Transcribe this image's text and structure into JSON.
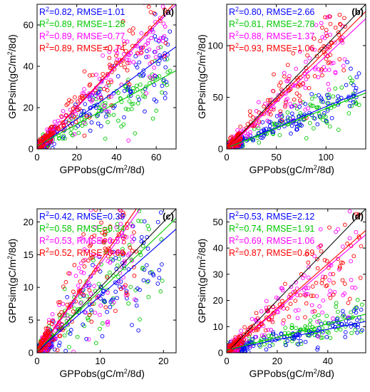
{
  "chart_data": [
    {
      "panel": "(a)",
      "type": "scatter",
      "xlabel": "GPPobs(gC/m²/8d)",
      "ylabel": "GPPsim(gC/m²/8d)",
      "xlim": [
        0,
        70
      ],
      "ylim": [
        0,
        70
      ],
      "xticks": [
        "0",
        "20",
        "40",
        "60"
      ],
      "xtick_values": [
        0,
        20,
        40,
        60
      ],
      "yticks": [
        "0",
        "20",
        "40",
        "60"
      ],
      "ytick_values": [
        0,
        20,
        40,
        60
      ],
      "grid": false,
      "legend": "top-left",
      "series": [
        {
          "color": "#0000ff",
          "r2": "0.82",
          "rmse": "1.01",
          "slope": 0.7,
          "intercept": 0.5,
          "xmax": 68,
          "spread": 0.25
        },
        {
          "color": "#00c800",
          "r2": "0.89",
          "rmse": "1.28",
          "slope": 0.52,
          "intercept": 1.5,
          "xmax": 68,
          "spread": 0.25
        },
        {
          "color": "#ff00ff",
          "r2": "0.89",
          "rmse": "0.77",
          "slope": 1.0,
          "intercept": 0.0,
          "xmax": 65,
          "spread": 0.22
        },
        {
          "color": "#ff0000",
          "r2": "0.89",
          "rmse": "0.74",
          "slope": 1.02,
          "intercept": 0.0,
          "xmax": 65,
          "spread": 0.22
        }
      ],
      "stats_text": [
        {
          "color": "#0000ff",
          "text": "R²=0.82, RMSE=1.01"
        },
        {
          "color": "#00c800",
          "text": "R²=0.89, RMSE=1.28"
        },
        {
          "color": "#ff00ff",
          "text": "R²=0.89, RMSE=0.77"
        },
        {
          "color": "#ff0000",
          "text": "R²=0.89, RMSE=0.74"
        }
      ]
    },
    {
      "panel": "(b)",
      "type": "scatter",
      "xlabel": "GPPobs(gC/m²/8d)",
      "ylabel": "GPPsim(gC/m²/8d)",
      "xlim": [
        0,
        140
      ],
      "ylim": [
        0,
        140
      ],
      "xticks": [
        "0",
        "50",
        "100"
      ],
      "xtick_values": [
        0,
        50,
        100
      ],
      "yticks": [
        "0",
        "50",
        "100"
      ],
      "ytick_values": [
        0,
        50,
        100
      ],
      "grid": false,
      "legend": "top-left",
      "series": [
        {
          "color": "#0000ff",
          "r2": "0.80",
          "rmse": "2.66",
          "slope": 0.4,
          "intercept": 1.0,
          "xmax": 135,
          "spread": 0.22
        },
        {
          "color": "#00c800",
          "r2": "0.81",
          "rmse": "2.78",
          "slope": 0.38,
          "intercept": 1.0,
          "xmax": 135,
          "spread": 0.22
        },
        {
          "color": "#ff00ff",
          "r2": "0.88",
          "rmse": "1.37",
          "slope": 0.9,
          "intercept": 0.0,
          "xmax": 120,
          "spread": 0.22
        },
        {
          "color": "#ff0000",
          "r2": "0.93",
          "rmse": "1.06",
          "slope": 0.95,
          "intercept": 0.0,
          "xmax": 120,
          "spread": 0.2
        }
      ],
      "stats_text": [
        {
          "color": "#0000ff",
          "text": "R²=0.80, RMSE=2.66"
        },
        {
          "color": "#00c800",
          "text": "R²=0.81, RMSE=2.78"
        },
        {
          "color": "#ff00ff",
          "text": "R²=0.88, RMSE=1.37"
        },
        {
          "color": "#ff0000",
          "text": "R²=0.93, RMSE=1.06"
        }
      ]
    },
    {
      "panel": "(c)",
      "type": "scatter",
      "xlabel": "GPPobs(gC/m²/8d)",
      "ylabel": "GPPsim(gC/m²/8d)",
      "xlim": [
        0,
        22
      ],
      "ylim": [
        0,
        22
      ],
      "xticks": [
        "0",
        "10",
        "20"
      ],
      "xtick_values": [
        0,
        10,
        20
      ],
      "yticks": [
        "0",
        "5",
        "10",
        "15",
        "20"
      ],
      "ytick_values": [
        0,
        5,
        10,
        15,
        20
      ],
      "grid": false,
      "legend": "top-left",
      "series": [
        {
          "color": "#0000ff",
          "r2": "0.42",
          "rmse": "0.39",
          "slope": 0.85,
          "intercept": 0.2,
          "xmax": 20,
          "spread": 0.4
        },
        {
          "color": "#00c800",
          "r2": "0.58",
          "rmse": "0.34",
          "slope": 0.92,
          "intercept": 0.3,
          "xmax": 20,
          "spread": 0.35
        },
        {
          "color": "#ff00ff",
          "r2": "0.53",
          "rmse": "0.57",
          "slope": 1.35,
          "intercept": 0.0,
          "xmax": 16,
          "spread": 0.35
        },
        {
          "color": "#ff0000",
          "r2": "0.52",
          "rmse": "0.60",
          "slope": 1.4,
          "intercept": 0.0,
          "xmax": 16,
          "spread": 0.35
        }
      ],
      "stats_text": [
        {
          "color": "#0000ff",
          "text": "R²=0.42, RMSE=0.39"
        },
        {
          "color": "#00c800",
          "text": "R²=0.58, RMSE=0.34"
        },
        {
          "color": "#ff00ff",
          "text": "R²=0.53, RMSE=0.57"
        },
        {
          "color": "#ff0000",
          "text": "R²=0.52, RMSE=0.60"
        }
      ]
    },
    {
      "panel": "(d)",
      "type": "scatter",
      "xlabel": "GPPobs(gC/m²/8d)",
      "ylabel": "GPPsim(gC/m²/8d)",
      "xlim": [
        0,
        55
      ],
      "ylim": [
        0,
        55
      ],
      "xticks": [
        "0",
        "20",
        "40"
      ],
      "xtick_values": [
        0,
        20,
        40
      ],
      "yticks": [
        "0",
        "10",
        "20",
        "30",
        "40",
        "50"
      ],
      "ytick_values": [
        0,
        10,
        20,
        30,
        40,
        50
      ],
      "grid": false,
      "legend": "top-left",
      "series": [
        {
          "color": "#0000ff",
          "r2": "0.53",
          "rmse": "2.12",
          "slope": 0.2,
          "intercept": 1.0,
          "xmax": 54,
          "spread": 0.25
        },
        {
          "color": "#00c800",
          "r2": "0.74",
          "rmse": "1.91",
          "slope": 0.25,
          "intercept": 1.0,
          "xmax": 54,
          "spread": 0.25
        },
        {
          "color": "#ff00ff",
          "r2": "0.69",
          "rmse": "1.06",
          "slope": 0.82,
          "intercept": 0.0,
          "xmax": 54,
          "spread": 0.3
        },
        {
          "color": "#ff0000",
          "r2": "0.87",
          "rmse": "0.69",
          "slope": 0.85,
          "intercept": 0.0,
          "xmax": 54,
          "spread": 0.22
        }
      ],
      "stats_text": [
        {
          "color": "#0000ff",
          "text": "R²=0.53, RMSE=2.12"
        },
        {
          "color": "#00c800",
          "text": "R²=0.74, RMSE=1.91"
        },
        {
          "color": "#ff00ff",
          "text": "R²=0.69, RMSE=1.06"
        },
        {
          "color": "#ff0000",
          "text": "R²=0.87, RMSE=0.69"
        }
      ]
    }
  ]
}
